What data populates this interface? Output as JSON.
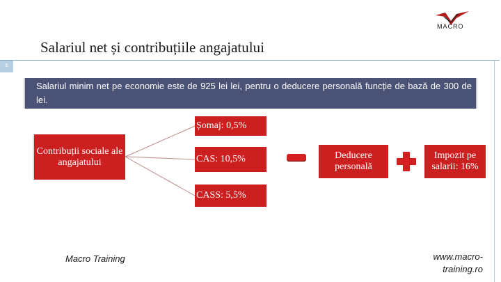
{
  "header": {
    "title": "Salariul net și contribuțiile angajatului",
    "slide_number": "6",
    "logo_text": "MACRO"
  },
  "info": {
    "text": "Salariul minim net pe economie este de 925 lei lei, pentru o deducere personală funcție de bază de 300 de lei."
  },
  "diagram": {
    "contributions": "Contribuții sociale ale angajatului",
    "items": [
      "Șomaj: 0,5%",
      "CAS: 10,5%",
      "CASS: 5,5%"
    ],
    "deduction": "Deducere personală",
    "tax": "Impozit pe salarii: 16%"
  },
  "footer": {
    "left": "Macro Training",
    "right": "www.macro-training.ro"
  },
  "colors": {
    "accent_red": "#cc1f1f",
    "info_box": "#4a5275",
    "rule_blue": "#7fa6c4"
  }
}
